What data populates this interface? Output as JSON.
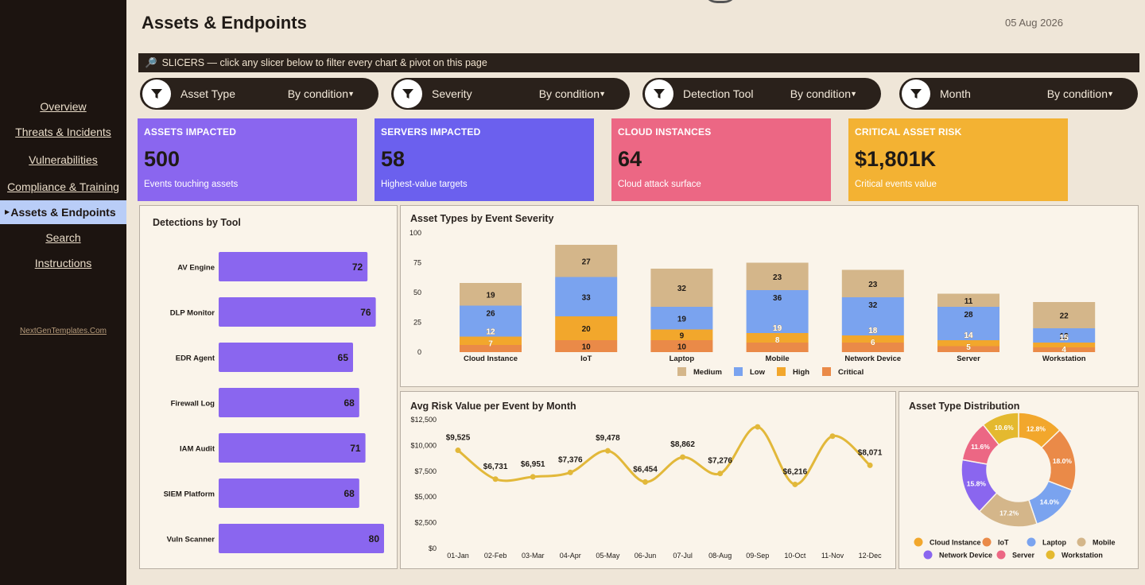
{
  "sidebar": {
    "items": [
      {
        "label": "Overview",
        "active": false
      },
      {
        "label": "Threats & Incidents",
        "active": false
      },
      {
        "label": "Vulnerabilities",
        "active": false
      },
      {
        "label": "Compliance & Training",
        "active": false
      },
      {
        "label": "Assets & Endpoints",
        "active": true
      },
      {
        "label": "Search",
        "active": false
      },
      {
        "label": "Instructions",
        "active": false
      }
    ],
    "brand": "NextGenTemplates.Com"
  },
  "header": {
    "title": "Assets & Endpoints",
    "date": "05 Aug 2026"
  },
  "slicer_banner": "SLICERS — click any slicer below to filter every chart & pivot on this page",
  "slicers": [
    {
      "label": "Asset Type",
      "condition": "By condition"
    },
    {
      "label": "Severity",
      "condition": "By condition"
    },
    {
      "label": "Detection Tool",
      "condition": "By condition"
    },
    {
      "label": "Month",
      "condition": "By condition"
    }
  ],
  "kpis": [
    {
      "title": "ASSETS IMPACTED",
      "value": "500",
      "subtitle": "Events touching assets",
      "color": "#8a66ef"
    },
    {
      "title": "SERVERS IMPACTED",
      "value": "58",
      "subtitle": "Highest-value targets",
      "color": "#6b60ee"
    },
    {
      "title": "CLOUD INSTANCES",
      "value": "64",
      "subtitle": "Cloud attack surface",
      "color": "#ec6784"
    },
    {
      "title": "CRITICAL ASSET RISK",
      "value": "$1,801K",
      "subtitle": "Critical events value",
      "color": "#f3b233"
    }
  ],
  "colors": {
    "medium": "#d4b68a",
    "low": "#7aa3ef",
    "high": "#f2a72c",
    "critical": "#ea8a48",
    "bar": "#8a66ef",
    "line": "#e2b83a"
  },
  "chart_data": [
    {
      "type": "bar",
      "orientation": "horizontal",
      "title": "Detections by Tool",
      "categories": [
        "AV Engine",
        "DLP Monitor",
        "EDR Agent",
        "Firewall Log",
        "IAM Audit",
        "SIEM Platform",
        "Vuln Scanner"
      ],
      "values": [
        72,
        76,
        65,
        68,
        71,
        68,
        80
      ],
      "grid": false
    },
    {
      "type": "bar",
      "stacked": true,
      "title": "Asset Types by Event Severity",
      "categories": [
        "Cloud Instance",
        "IoT",
        "Laptop",
        "Mobile",
        "Network Device",
        "Server",
        "Workstation"
      ],
      "series": [
        {
          "name": "Critical",
          "values": [
            6,
            10,
            10,
            8,
            8,
            5,
            4
          ]
        },
        {
          "name": "High",
          "values": [
            7,
            20,
            9,
            8,
            6,
            5,
            4
          ]
        },
        {
          "name": "Low",
          "values": [
            26,
            33,
            19,
            36,
            32,
            28,
            12
          ]
        },
        {
          "name": "Medium",
          "values": [
            19,
            27,
            32,
            23,
            23,
            11,
            22
          ]
        }
      ],
      "data_labels": [
        {
          "Critical": "",
          "High": "7",
          "Low": "26",
          "Medium": "19",
          "Extra": "12"
        },
        {
          "Critical": "10",
          "High": "20",
          "Low": "33",
          "Medium": "27",
          "Extra": ""
        },
        {
          "Critical": "10",
          "High": "9",
          "Low": "19",
          "Medium": "32",
          "Extra": ""
        },
        {
          "Critical": "",
          "High": "8",
          "Low": "36",
          "Medium": "23",
          "Extra": "19"
        },
        {
          "Critical": "",
          "High": "6",
          "Low": "32",
          "Medium": "23",
          "Extra": "18"
        },
        {
          "Critical": "",
          "High": "5",
          "Low": "28",
          "Medium": "11",
          "Extra": "14"
        },
        {
          "Critical": "",
          "High": "4",
          "Low": "12",
          "Medium": "22",
          "Extra": "15"
        }
      ],
      "yticks": [
        "0",
        "25",
        "50",
        "75",
        "100"
      ],
      "ylim": [
        0,
        100
      ],
      "legend": [
        "Medium",
        "Low",
        "High",
        "Critical"
      ],
      "legend_position": "bottom"
    },
    {
      "type": "line",
      "title": "Avg Risk Value per Event by Month",
      "categories": [
        "01-Jan",
        "02-Feb",
        "03-Mar",
        "04-Apr",
        "05-May",
        "06-Jun",
        "07-Jul",
        "08-Aug",
        "09-Sep",
        "10-Oct",
        "11-Nov",
        "12-Dec"
      ],
      "values": [
        9525,
        6731,
        6951,
        7376,
        9478,
        6454,
        8862,
        7276,
        11800,
        6216,
        10900,
        8071
      ],
      "labels": [
        "$9,525",
        "$6,731",
        "$6,951",
        "$7,376",
        "$9,478",
        "$6,454",
        "$8,862",
        "$7,276",
        "",
        "$6,216",
        "",
        "$8,071"
      ],
      "yticks": [
        "$0",
        "$2,500",
        "$5,000",
        "$7,500",
        "$10,000",
        "$12,500"
      ],
      "ylim": [
        0,
        12500
      ]
    },
    {
      "type": "pie",
      "donut": true,
      "title": "Asset Type Distribution",
      "slices": [
        {
          "name": "Cloud Instance",
          "value": 12.8,
          "label": "12.8%",
          "color": "#f2a72c"
        },
        {
          "name": "IoT",
          "value": 18.0,
          "label": "18.0%",
          "color": "#ea8a48"
        },
        {
          "name": "Laptop",
          "value": 14.0,
          "label": "14.0%",
          "color": "#7aa3ef"
        },
        {
          "name": "Mobile",
          "value": 17.2,
          "label": "17.2%",
          "color": "#d4b68a"
        },
        {
          "name": "Network Device",
          "value": 15.8,
          "label": "15.8%",
          "color": "#8a66ef"
        },
        {
          "name": "Server",
          "value": 11.6,
          "label": "11.6%",
          "color": "#ec6784"
        },
        {
          "name": "Workstation",
          "value": 10.6,
          "label": "10.6%",
          "color": "#e4b92f"
        }
      ],
      "legend_position": "bottom"
    }
  ]
}
